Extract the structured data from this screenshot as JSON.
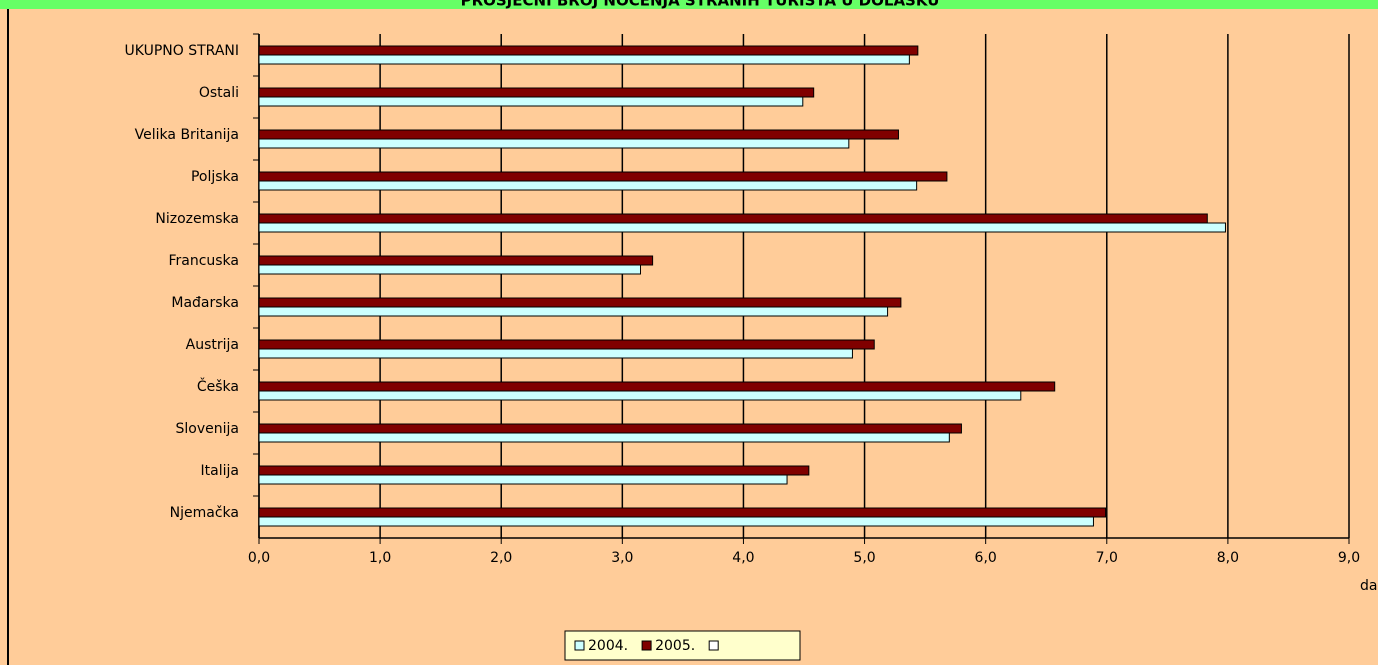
{
  "chart_data": {
    "type": "hbar",
    "title": "PROSJEČNI BROJ NOĆENJA STRANIH TURISTA U DOLASKU",
    "x_label": "dani",
    "categories": [
      "UKUPNO STRANI",
      "Ostali",
      "Velika Britanija",
      "Poljska",
      "Nizozemska",
      "Francuska",
      "Mađarska",
      "Austrija",
      "Češka",
      "Slovenija",
      "Italija",
      "Njemačka"
    ],
    "series": [
      {
        "name": "2004.",
        "color": "#ccffff",
        "values": [
          5.37,
          4.49,
          4.87,
          5.43,
          7.98,
          3.15,
          5.19,
          4.9,
          6.29,
          5.7,
          4.36,
          6.89
        ]
      },
      {
        "name": "2005.",
        "color": "#800000",
        "values": [
          5.44,
          4.58,
          5.28,
          5.68,
          7.83,
          3.25,
          5.3,
          5.08,
          6.57,
          5.8,
          4.54,
          6.99
        ]
      }
    ],
    "xlim": [
      0,
      9
    ],
    "xticks": [
      {
        "value": 0,
        "label": "0,0"
      },
      {
        "value": 1,
        "label": "1,0"
      },
      {
        "value": 2,
        "label": "2,0"
      },
      {
        "value": 3,
        "label": "3,0"
      },
      {
        "value": 4,
        "label": "4,0"
      },
      {
        "value": 5,
        "label": "5,0"
      },
      {
        "value": 6,
        "label": "6,0"
      },
      {
        "value": 7,
        "label": "7,0"
      },
      {
        "value": 8,
        "label": "8,0"
      },
      {
        "value": 9,
        "label": "9,0"
      }
    ],
    "grid": true,
    "legend": "bottom"
  }
}
